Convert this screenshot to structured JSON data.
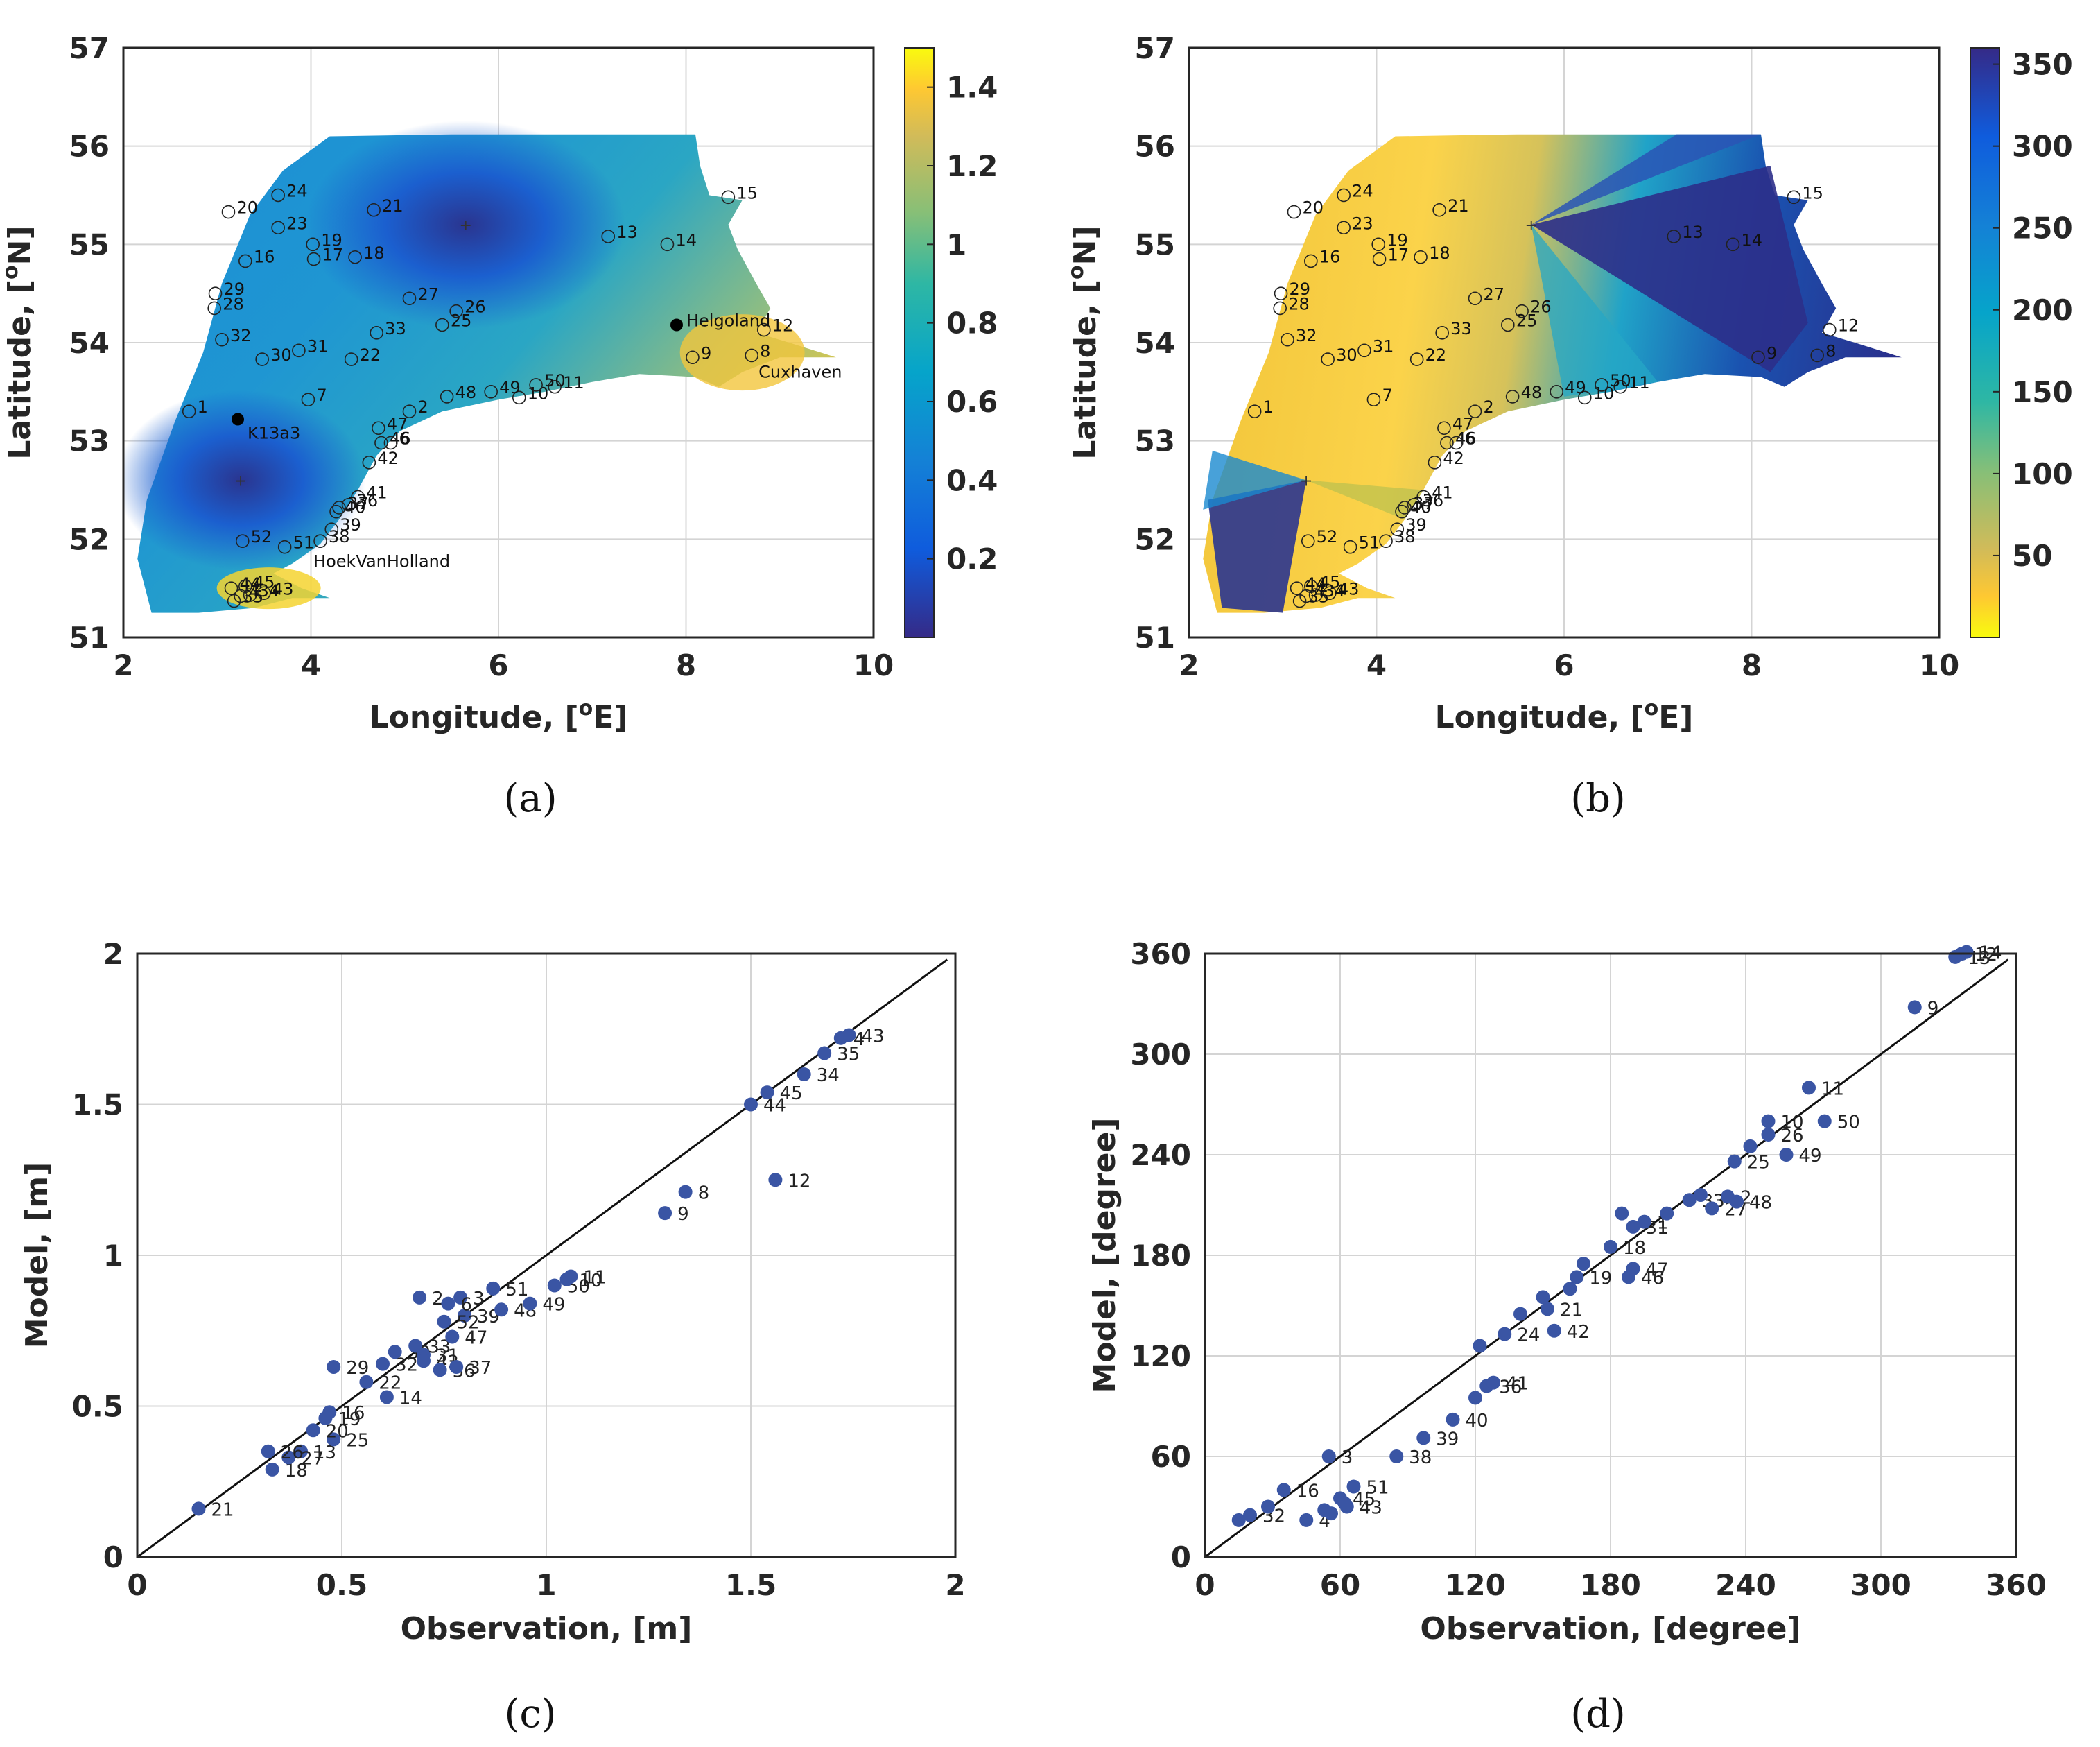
{
  "chart_data": [
    {
      "type": "heatmap",
      "panel": "(a)",
      "xlabel": "Longitude, [°E]",
      "ylabel": "Latitude, [°N]",
      "xlim": [
        2,
        10
      ],
      "ylim": [
        51,
        57
      ],
      "xticks": [
        2,
        4,
        6,
        8,
        10
      ],
      "yticks": [
        51,
        52,
        53,
        54,
        55,
        56,
        57
      ],
      "grid": true,
      "colorbar": {
        "range": [
          0,
          1.5
        ],
        "ticks": [
          "0.2",
          "0.4",
          "0.6",
          "0.8",
          "1",
          "1.2",
          "1.4"
        ],
        "colormap": "parula"
      },
      "named_points": [
        {
          "name": "K13a3",
          "lon": 3.22,
          "lat": 53.22
        },
        {
          "name": "Helgoland",
          "lon": 7.9,
          "lat": 54.18
        },
        {
          "name": "HoekVanHolland",
          "lon": 4.1,
          "lat": 52.0
        },
        {
          "name": "Cuxhaven",
          "lon": 8.7,
          "lat": 53.87
        }
      ],
      "stations": [
        {
          "id": "1",
          "lon": 2.7,
          "lat": 53.3
        },
        {
          "id": "7",
          "lon": 3.97,
          "lat": 53.42
        },
        {
          "id": "9",
          "lon": 8.07,
          "lat": 53.85
        },
        {
          "id": "8",
          "lon": 8.7,
          "lat": 53.87
        },
        {
          "id": "10",
          "lon": 6.22,
          "lat": 53.44
        },
        {
          "id": "11",
          "lon": 6.6,
          "lat": 53.55
        },
        {
          "id": "12",
          "lon": 8.83,
          "lat": 54.13
        },
        {
          "id": "13",
          "lon": 7.17,
          "lat": 55.08
        },
        {
          "id": "14",
          "lon": 7.8,
          "lat": 55.0
        },
        {
          "id": "15",
          "lon": 8.45,
          "lat": 55.48
        },
        {
          "id": "16",
          "lon": 3.3,
          "lat": 54.83
        },
        {
          "id": "17",
          "lon": 4.03,
          "lat": 54.85
        },
        {
          "id": "18",
          "lon": 4.47,
          "lat": 54.87
        },
        {
          "id": "19",
          "lon": 4.02,
          "lat": 55.0
        },
        {
          "id": "20",
          "lon": 3.12,
          "lat": 55.33
        },
        {
          "id": "21",
          "lon": 4.67,
          "lat": 55.35
        },
        {
          "id": "22",
          "lon": 4.43,
          "lat": 53.83
        },
        {
          "id": "23",
          "lon": 3.65,
          "lat": 55.17
        },
        {
          "id": "24",
          "lon": 3.65,
          "lat": 55.5
        },
        {
          "id": "25",
          "lon": 5.4,
          "lat": 54.18
        },
        {
          "id": "26",
          "lon": 5.55,
          "lat": 54.32
        },
        {
          "id": "27",
          "lon": 5.05,
          "lat": 54.45
        },
        {
          "id": "28",
          "lon": 2.97,
          "lat": 54.35
        },
        {
          "id": "29",
          "lon": 2.98,
          "lat": 54.5
        },
        {
          "id": "30",
          "lon": 3.48,
          "lat": 53.83
        },
        {
          "id": "31",
          "lon": 3.87,
          "lat": 53.92
        },
        {
          "id": "32",
          "lon": 3.05,
          "lat": 54.03
        },
        {
          "id": "33",
          "lon": 4.7,
          "lat": 54.1
        },
        {
          "id": "35",
          "lon": 3.18,
          "lat": 51.37
        },
        {
          "id": "38",
          "lon": 4.1,
          "lat": 51.98
        },
        {
          "id": "39",
          "lon": 4.22,
          "lat": 52.1
        },
        {
          "id": "40",
          "lon": 4.27,
          "lat": 52.28
        },
        {
          "id": "41",
          "lon": 4.5,
          "lat": 52.43
        },
        {
          "id": "42",
          "lon": 4.62,
          "lat": 52.78
        },
        {
          "id": "43",
          "lon": 3.5,
          "lat": 51.45
        },
        {
          "id": "44",
          "lon": 3.15,
          "lat": 51.5
        },
        {
          "id": "45",
          "lon": 3.3,
          "lat": 51.52
        },
        {
          "id": "46",
          "lon": 4.75,
          "lat": 52.98
        },
        {
          "id": "47",
          "lon": 4.72,
          "lat": 53.13
        },
        {
          "id": "48",
          "lon": 5.45,
          "lat": 53.45
        },
        {
          "id": "49",
          "lon": 5.92,
          "lat": 53.5
        },
        {
          "id": "50",
          "lon": 6.4,
          "lat": 53.57
        },
        {
          "id": "51",
          "lon": 3.72,
          "lat": 51.92
        },
        {
          "id": "52",
          "lon": 3.27,
          "lat": 51.98
        },
        {
          "id": "2",
          "lon": 5.05,
          "lat": 53.3
        },
        {
          "id": "6",
          "lon": 4.85,
          "lat": 52.98
        },
        {
          "id": "36",
          "lon": 4.4,
          "lat": 52.35
        },
        {
          "id": "37",
          "lon": 4.3,
          "lat": 52.32
        },
        {
          "id": "34",
          "lon": 3.35,
          "lat": 51.43
        },
        {
          "id": "4",
          "lon": 3.25,
          "lat": 51.42
        }
      ]
    },
    {
      "type": "heatmap",
      "panel": "(b)",
      "xlabel": "Longitude, [°E]",
      "ylabel": "Latitude, [°N]",
      "xlim": [
        2,
        10
      ],
      "ylim": [
        51,
        57
      ],
      "xticks": [
        2,
        4,
        6,
        8,
        10
      ],
      "yticks": [
        51,
        52,
        53,
        54,
        55,
        56,
        57
      ],
      "grid": true,
      "colorbar": {
        "range": [
          0,
          360
        ],
        "ticks": [
          "50",
          "100",
          "150",
          "200",
          "250",
          "300",
          "350"
        ],
        "colormap": "parula reversed"
      },
      "amphidromic_points": [
        {
          "lon": 3.25,
          "lat": 52.6
        },
        {
          "lon": 5.65,
          "lat": 55.2
        }
      ]
    },
    {
      "type": "scatter",
      "panel": "(c)",
      "xlabel": "Observation, [m]",
      "ylabel": "Model, [m]",
      "xlim": [
        0,
        2
      ],
      "ylim": [
        0,
        2
      ],
      "xticks": [
        "0",
        "0.5",
        "1",
        "1.5",
        "2"
      ],
      "yticks": [
        "0",
        "0.5",
        "1",
        "1.5",
        "2"
      ],
      "grid": true,
      "reference_line": "y = x",
      "points": [
        {
          "id": "21",
          "x": 0.15,
          "y": 0.16
        },
        {
          "id": "18",
          "x": 0.33,
          "y": 0.29
        },
        {
          "id": "13",
          "x": 0.4,
          "y": 0.35
        },
        {
          "id": "27",
          "x": 0.37,
          "y": 0.33
        },
        {
          "id": "26",
          "x": 0.32,
          "y": 0.35
        },
        {
          "id": "25",
          "x": 0.48,
          "y": 0.39
        },
        {
          "id": "20",
          "x": 0.43,
          "y": 0.42
        },
        {
          "id": "19",
          "x": 0.46,
          "y": 0.46
        },
        {
          "id": "16",
          "x": 0.47,
          "y": 0.48
        },
        {
          "id": "29",
          "x": 0.48,
          "y": 0.63
        },
        {
          "id": "14",
          "x": 0.61,
          "y": 0.53
        },
        {
          "id": "22",
          "x": 0.56,
          "y": 0.58
        },
        {
          "id": "32",
          "x": 0.6,
          "y": 0.64
        },
        {
          "id": "30",
          "x": 0.63,
          "y": 0.68
        },
        {
          "id": "31",
          "x": 0.7,
          "y": 0.67
        },
        {
          "id": "33",
          "x": 0.68,
          "y": 0.7
        },
        {
          "id": "42",
          "x": 0.7,
          "y": 0.65
        },
        {
          "id": "36",
          "x": 0.74,
          "y": 0.62
        },
        {
          "id": "37",
          "x": 0.78,
          "y": 0.63
        },
        {
          "id": "47",
          "x": 0.77,
          "y": 0.73
        },
        {
          "id": "39",
          "x": 0.8,
          "y": 0.8
        },
        {
          "id": "52",
          "x": 0.75,
          "y": 0.78
        },
        {
          "id": "2",
          "x": 0.69,
          "y": 0.86
        },
        {
          "id": "3",
          "x": 0.79,
          "y": 0.86
        },
        {
          "id": "6",
          "x": 0.76,
          "y": 0.84
        },
        {
          "id": "51",
          "x": 0.87,
          "y": 0.89
        },
        {
          "id": "48",
          "x": 0.89,
          "y": 0.82
        },
        {
          "id": "49",
          "x": 0.96,
          "y": 0.84
        },
        {
          "id": "50",
          "x": 1.02,
          "y": 0.9
        },
        {
          "id": "10",
          "x": 1.05,
          "y": 0.92
        },
        {
          "id": "11",
          "x": 1.06,
          "y": 0.93
        },
        {
          "id": "9",
          "x": 1.29,
          "y": 1.14
        },
        {
          "id": "8",
          "x": 1.34,
          "y": 1.21
        },
        {
          "id": "12",
          "x": 1.56,
          "y": 1.25
        },
        {
          "id": "44",
          "x": 1.5,
          "y": 1.5
        },
        {
          "id": "45",
          "x": 1.54,
          "y": 1.54
        },
        {
          "id": "34",
          "x": 1.63,
          "y": 1.6
        },
        {
          "id": "35",
          "x": 1.68,
          "y": 1.67
        },
        {
          "id": "4",
          "x": 1.72,
          "y": 1.72
        },
        {
          "id": "43",
          "x": 1.74,
          "y": 1.73
        }
      ]
    },
    {
      "type": "scatter",
      "panel": "(d)",
      "xlabel": "Observation, [degree]",
      "ylabel": "Model, [degree]",
      "xlim": [
        0,
        360
      ],
      "ylim": [
        0,
        360
      ],
      "xticks": [
        "0",
        "60",
        "120",
        "180",
        "240",
        "300",
        "360"
      ],
      "yticks": [
        "0",
        "60",
        "120",
        "180",
        "240",
        "300",
        "360"
      ],
      "grid": true,
      "reference_line": "y = x",
      "points": [
        {
          "id": "",
          "x": 15,
          "y": 22
        },
        {
          "id": "32",
          "x": 20,
          "y": 25
        },
        {
          "id": "",
          "x": 28,
          "y": 30
        },
        {
          "id": "16",
          "x": 35,
          "y": 40
        },
        {
          "id": "4",
          "x": 45,
          "y": 22
        },
        {
          "id": "3",
          "x": 55,
          "y": 60
        },
        {
          "id": "",
          "x": 53,
          "y": 28
        },
        {
          "id": "",
          "x": 56,
          "y": 26
        },
        {
          "id": "45",
          "x": 60,
          "y": 35
        },
        {
          "id": "",
          "x": 62,
          "y": 32
        },
        {
          "id": "43",
          "x": 63,
          "y": 30
        },
        {
          "id": "51",
          "x": 66,
          "y": 42
        },
        {
          "id": "38",
          "x": 85,
          "y": 60
        },
        {
          "id": "39",
          "x": 97,
          "y": 71
        },
        {
          "id": "40",
          "x": 110,
          "y": 82
        },
        {
          "id": "",
          "x": 120,
          "y": 95
        },
        {
          "id": "36",
          "x": 125,
          "y": 102
        },
        {
          "id": "41",
          "x": 128,
          "y": 104
        },
        {
          "id": "",
          "x": 122,
          "y": 126
        },
        {
          "id": "24",
          "x": 133,
          "y": 133
        },
        {
          "id": "",
          "x": 140,
          "y": 145
        },
        {
          "id": "21",
          "x": 152,
          "y": 148
        },
        {
          "id": "42",
          "x": 155,
          "y": 135
        },
        {
          "id": "",
          "x": 150,
          "y": 155
        },
        {
          "id": "",
          "x": 162,
          "y": 160
        },
        {
          "id": "19",
          "x": 165,
          "y": 167
        },
        {
          "id": "",
          "x": 168,
          "y": 175
        },
        {
          "id": "18",
          "x": 180,
          "y": 185
        },
        {
          "id": "46",
          "x": 188,
          "y": 167
        },
        {
          "id": "47",
          "x": 190,
          "y": 172
        },
        {
          "id": "31",
          "x": 190,
          "y": 197
        },
        {
          "id": "",
          "x": 185,
          "y": 205
        },
        {
          "id": "1",
          "x": 195,
          "y": 200
        },
        {
          "id": "",
          "x": 205,
          "y": 205
        },
        {
          "id": "33",
          "x": 215,
          "y": 213
        },
        {
          "id": "",
          "x": 220,
          "y": 216
        },
        {
          "id": "27",
          "x": 225,
          "y": 208
        },
        {
          "id": "2",
          "x": 232,
          "y": 215
        },
        {
          "id": "48",
          "x": 236,
          "y": 212
        },
        {
          "id": "25",
          "x": 235,
          "y": 236
        },
        {
          "id": "",
          "x": 242,
          "y": 245
        },
        {
          "id": "26",
          "x": 250,
          "y": 252
        },
        {
          "id": "49",
          "x": 258,
          "y": 240
        },
        {
          "id": "10",
          "x": 250,
          "y": 260
        },
        {
          "id": "50",
          "x": 275,
          "y": 260
        },
        {
          "id": "11",
          "x": 268,
          "y": 280
        },
        {
          "id": "9",
          "x": 315,
          "y": 328
        },
        {
          "id": "13",
          "x": 333,
          "y": 358
        },
        {
          "id": "12",
          "x": 336,
          "y": 360
        },
        {
          "id": "14",
          "x": 338,
          "y": 361
        }
      ]
    }
  ],
  "captions": [
    "(a)",
    "(b)",
    "(c)",
    "(d)"
  ],
  "labels": {
    "a_xlabel_main": "Longitude, [",
    "a_xlabel_sup": "o",
    "a_xlabel_end": "E]",
    "a_ylabel_main": "Latitude, [",
    "a_ylabel_sup": "o",
    "a_ylabel_end": "N]"
  }
}
